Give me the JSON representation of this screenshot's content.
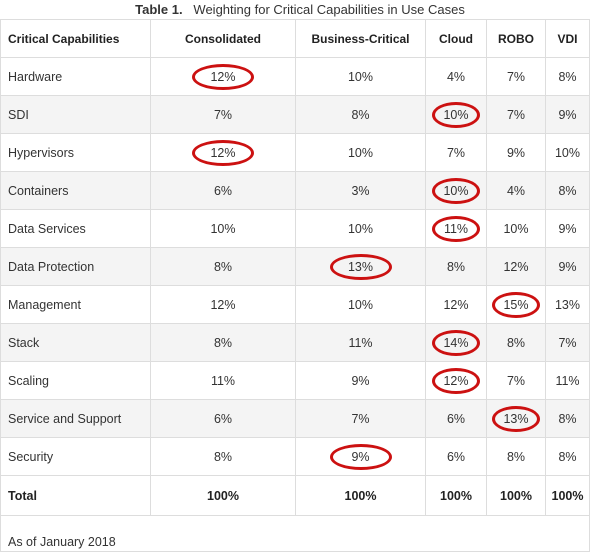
{
  "caption": {
    "number": "Table 1.",
    "title": "Weighting for Critical Capabilities in Use Cases"
  },
  "columns": [
    "Critical Capabilities",
    "Consolidated",
    "Business-Critical",
    "Cloud",
    "ROBO",
    "VDI"
  ],
  "rows": [
    {
      "name": "Hardware",
      "values": [
        "12%",
        "10%",
        "4%",
        "7%",
        "8%"
      ],
      "highlight": [
        0
      ]
    },
    {
      "name": "SDI",
      "values": [
        "7%",
        "8%",
        "10%",
        "7%",
        "9%"
      ],
      "highlight": [
        2
      ]
    },
    {
      "name": "Hypervisors",
      "values": [
        "12%",
        "10%",
        "7%",
        "9%",
        "10%"
      ],
      "highlight": [
        0
      ]
    },
    {
      "name": "Containers",
      "values": [
        "6%",
        "3%",
        "10%",
        "4%",
        "8%"
      ],
      "highlight": [
        2
      ]
    },
    {
      "name": "Data Services",
      "values": [
        "10%",
        "10%",
        "11%",
        "10%",
        "9%"
      ],
      "highlight": [
        2
      ]
    },
    {
      "name": "Data Protection",
      "values": [
        "8%",
        "13%",
        "8%",
        "12%",
        "9%"
      ],
      "highlight": [
        1
      ]
    },
    {
      "name": "Management",
      "values": [
        "12%",
        "10%",
        "12%",
        "15%",
        "13%"
      ],
      "highlight": [
        3
      ]
    },
    {
      "name": "Stack",
      "values": [
        "8%",
        "11%",
        "14%",
        "8%",
        "7%"
      ],
      "highlight": [
        2
      ]
    },
    {
      "name": "Scaling",
      "values": [
        "11%",
        "9%",
        "12%",
        "7%",
        "11%"
      ],
      "highlight": [
        2
      ]
    },
    {
      "name": "Service and Support",
      "values": [
        "6%",
        "7%",
        "6%",
        "13%",
        "8%"
      ],
      "highlight": [
        3
      ]
    },
    {
      "name": "Security",
      "values": [
        "8%",
        "9%",
        "6%",
        "8%",
        "8%"
      ],
      "highlight": [
        1
      ]
    }
  ],
  "total": {
    "name": "Total",
    "values": [
      "100%",
      "100%",
      "100%",
      "100%",
      "100%"
    ]
  },
  "footnote": "As of January 2018",
  "colors": {
    "highlight_ring": "#cc1111",
    "border": "#dddddd",
    "stripe": "#f4f4f4"
  }
}
